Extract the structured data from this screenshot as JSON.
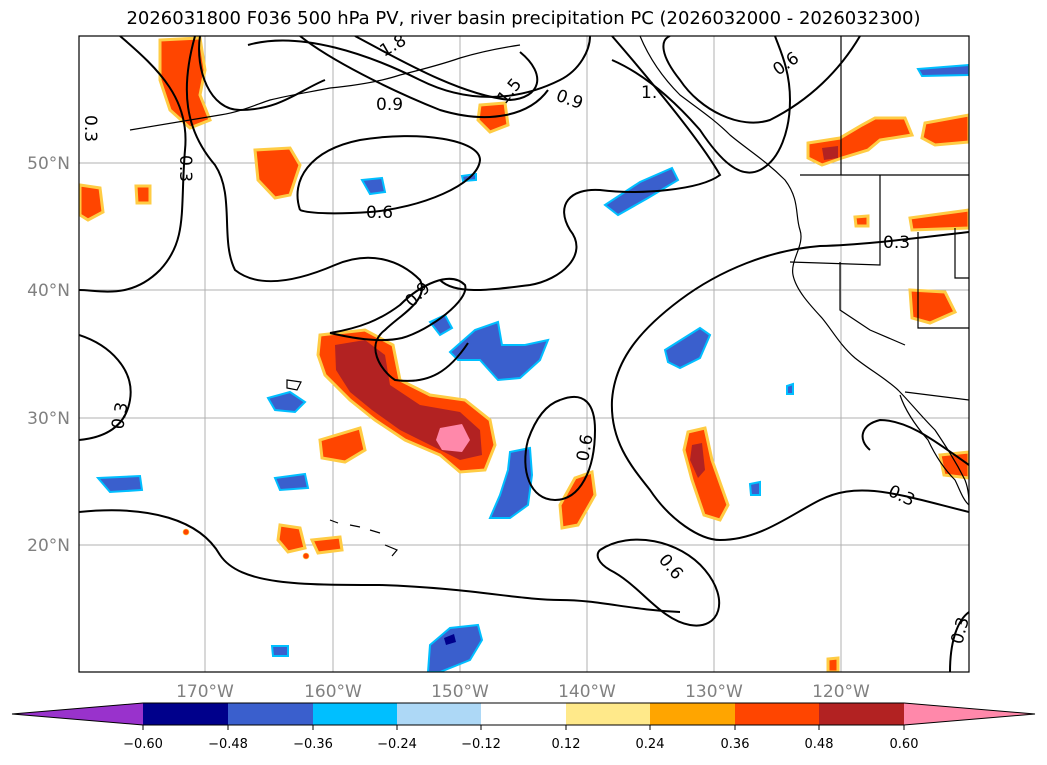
{
  "title": "2026031800 F036 500 hPa PV, river basin precipitation PC (2026032000 - 2026032300)",
  "lat_labels": [
    "50°N",
    "40°N",
    "30°N",
    "20°N"
  ],
  "lon_labels": [
    "170°W",
    "160°W",
    "150°W",
    "140°W",
    "130°W",
    "120°W"
  ],
  "colorbar": {
    "colors": [
      "#9932cc",
      "#00008b",
      "#3a5fcd",
      "#00bfff",
      "#add8f6",
      "#ffffff",
      "#ffe98a",
      "#ffa500",
      "#ff4500",
      "#b22222",
      "#ff88aa"
    ],
    "ticks": [
      "−0.60",
      "−0.48",
      "−0.36",
      "−0.24",
      "−0.12",
      "0.12",
      "0.24",
      "0.36",
      "0.48",
      "0.60"
    ]
  },
  "contour_labels": [
    "1.8",
    "0.9",
    "1.5",
    "0.9",
    "0.6",
    "1.",
    "0.3",
    "0.3",
    "0.6",
    "0.3",
    "0.9",
    "0.3",
    "0.6",
    "0.6",
    "0.3",
    "0.3"
  ],
  "colors": {
    "red": "#ff4500",
    "darkred": "#b22222",
    "pink": "#ff88aa",
    "blue": "#3a5fcd",
    "navy": "#00008b",
    "lightblue": "#add8f6",
    "yellow": "#ffe98a",
    "orange": "#ffa500"
  }
}
